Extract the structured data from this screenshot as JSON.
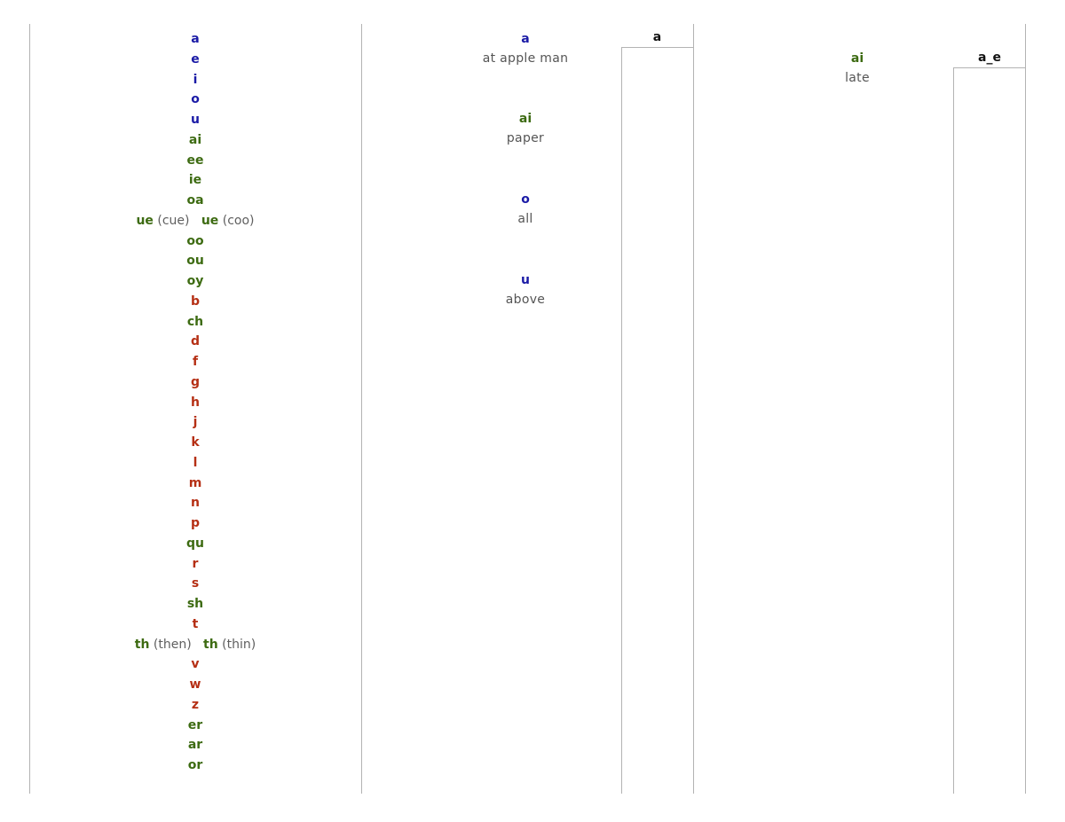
{
  "chart_list": [
    {
      "text": "a",
      "color": "blue"
    },
    {
      "text": "e",
      "color": "blue"
    },
    {
      "text": "i",
      "color": "blue"
    },
    {
      "text": "o",
      "color": "blue"
    },
    {
      "text": "u",
      "color": "blue"
    },
    {
      "text": "ai",
      "color": "green"
    },
    {
      "text": "ee",
      "color": "green"
    },
    {
      "text": "ie",
      "color": "green"
    },
    {
      "text": "oa",
      "color": "green"
    },
    {
      "text": "ue",
      "color": "green",
      "note": "(cue)",
      "text2": "ue",
      "note2": "(coo)"
    },
    {
      "text": "oo",
      "color": "green"
    },
    {
      "text": "ou",
      "color": "green"
    },
    {
      "text": "oy",
      "color": "green"
    },
    {
      "text": "b",
      "color": "red"
    },
    {
      "text": "ch",
      "color": "green"
    },
    {
      "text": "d",
      "color": "red"
    },
    {
      "text": "f",
      "color": "red"
    },
    {
      "text": "g",
      "color": "red"
    },
    {
      "text": "h",
      "color": "red"
    },
    {
      "text": "j",
      "color": "red"
    },
    {
      "text": "k",
      "color": "red"
    },
    {
      "text": "l",
      "color": "red"
    },
    {
      "text": "m",
      "color": "red"
    },
    {
      "text": "n",
      "color": "red"
    },
    {
      "text": "p",
      "color": "red"
    },
    {
      "text": "qu",
      "color": "green"
    },
    {
      "text": "r",
      "color": "red"
    },
    {
      "text": "s",
      "color": "red"
    },
    {
      "text": "sh",
      "color": "green"
    },
    {
      "text": "t",
      "color": "red"
    },
    {
      "text": "th",
      "color": "green",
      "note": "(then)",
      "text2": "th",
      "note2": "(thin)"
    },
    {
      "text": "v",
      "color": "red"
    },
    {
      "text": "w",
      "color": "red"
    },
    {
      "text": "z",
      "color": "red"
    },
    {
      "text": "er",
      "color": "green"
    },
    {
      "text": "ar",
      "color": "green"
    },
    {
      "text": "or",
      "color": "green"
    }
  ],
  "panel_a": {
    "header": "a",
    "entries": [
      {
        "grapheme": "a",
        "color": "blue",
        "example": "at apple man"
      },
      {
        "grapheme": "ai",
        "color": "green",
        "example": "paper"
      },
      {
        "grapheme": "o",
        "color": "blue",
        "example": "all"
      },
      {
        "grapheme": "u",
        "color": "blue",
        "example": "above"
      }
    ]
  },
  "panel_a_e": {
    "header": "a_e",
    "entries": [
      {
        "grapheme": "ai",
        "color": "green",
        "example": "late"
      }
    ]
  },
  "colors": {
    "blue": "#1a1aa6",
    "green": "#3d6b12",
    "red": "#b52f14",
    "rule": "#b3b3b3"
  }
}
